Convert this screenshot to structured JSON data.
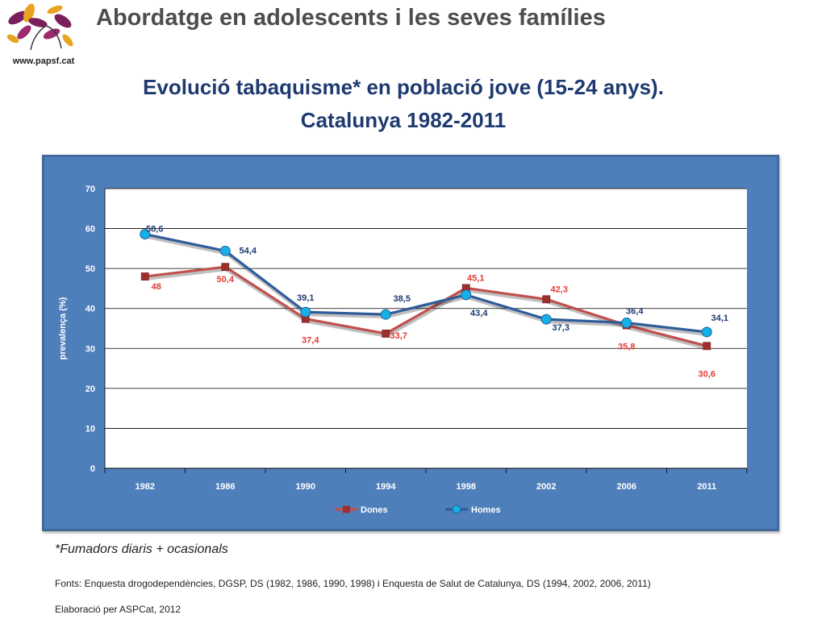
{
  "header": {
    "title": "Abordatge en adolescents i les seves famílies",
    "logo_url": "www.papsf.cat"
  },
  "chart_title": {
    "line1": "Evolució tabaquisme* en població jove (15-24 anys).",
    "line2": "Catalunya 1982-2011"
  },
  "chart_data": {
    "type": "line",
    "categories": [
      "1982",
      "1986",
      "1990",
      "1994",
      "1998",
      "2002",
      "2006",
      "2011"
    ],
    "ylabel": "prevalença (%)",
    "xlabel": "",
    "ylim": [
      0,
      70
    ],
    "yticks": [
      0,
      10,
      20,
      30,
      40,
      50,
      60,
      70
    ],
    "grid": "horizontal",
    "legend_position": "bottom",
    "series": [
      {
        "name": "Dones",
        "color": "#c0504d",
        "marker": "square",
        "values": [
          48,
          50.4,
          37.4,
          33.7,
          45.1,
          42.3,
          35.8,
          30.6
        ],
        "labels": [
          "48",
          "50,4",
          "37,4",
          "33,7",
          "45,1",
          "42,3",
          "35,8",
          "30,6"
        ]
      },
      {
        "name": "Homes",
        "color": "#2e5c99",
        "marker": "circle",
        "marker_color": "#12b2e8",
        "values": [
          58.6,
          54.4,
          39.1,
          38.5,
          43.4,
          37.3,
          36.4,
          34.1
        ],
        "labels": [
          "58,6",
          "54,4",
          "39,1",
          "38,5",
          "43,4",
          "37,3",
          "36,4",
          "34,1"
        ]
      }
    ]
  },
  "footnote": "*Fumadors diaris + ocasionals",
  "sources": "Fonts: Enquesta drogodependències, DGSP, DS (1982, 1986, 1990, 1998)  i Enquesta de Salut de Catalunya, DS (1994, 2002, 2006, 2011)",
  "credits": "Elaboració  per  ASPCat, 2012"
}
